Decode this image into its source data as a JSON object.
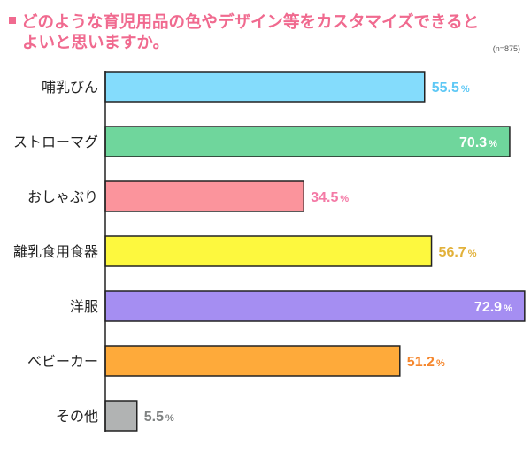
{
  "title_line1": "どのような育児用品の色やデザイン等をカスタマイズできると",
  "title_line2": "よいと思いますか。",
  "sample_size": "(n=875)",
  "chart_data": {
    "type": "bar",
    "orientation": "horizontal",
    "categories": [
      "哺乳びん",
      "ストローマグ",
      "おしゃぶり",
      "離乳食用食器",
      "洋服",
      "ベビーカー",
      "その他"
    ],
    "values": [
      55.5,
      70.3,
      34.5,
      56.7,
      72.9,
      51.2,
      5.5
    ],
    "value_labels": [
      "55.5",
      "70.3",
      "34.5",
      "56.7",
      "72.9",
      "51.2",
      "5.5"
    ],
    "unit": "%",
    "bar_colors": [
      "#84dcfc",
      "#6fd69c",
      "#fb949c",
      "#fdf83e",
      "#a58ef2",
      "#feaa3a",
      "#b1b3b3"
    ],
    "label_colors": [
      "#5ec8f5",
      "#ffffff",
      "#f47aa6",
      "#e2b13a",
      "#ffffff",
      "#f5862c",
      "#7f8282"
    ],
    "label_inside": [
      false,
      true,
      false,
      false,
      true,
      false,
      false
    ],
    "grid": false,
    "legend": "none"
  }
}
